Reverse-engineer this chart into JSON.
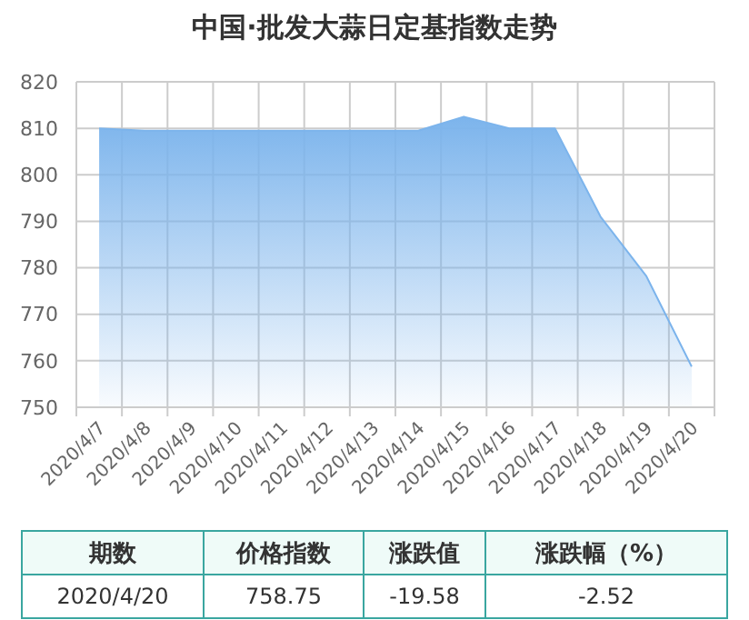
{
  "chart_data": {
    "type": "area",
    "title": "中国·批发大蒜日定基指数走势",
    "categories": [
      "2020/4/7",
      "2020/4/8",
      "2020/4/9",
      "2020/4/10",
      "2020/4/11",
      "2020/4/12",
      "2020/4/13",
      "2020/4/14",
      "2020/4/15",
      "2020/4/16",
      "2020/4/17",
      "2020/4/18",
      "2020/4/19",
      "2020/4/20"
    ],
    "series": [
      {
        "color": "#7cb4ec",
        "values": [
          810,
          809.5,
          809.5,
          809.5,
          809.5,
          809.5,
          809.5,
          809.5,
          812.5,
          810,
          810,
          791,
          778.3,
          758.75
        ]
      }
    ],
    "ylim": [
      750,
      820
    ],
    "yticks": [
      750,
      760,
      770,
      780,
      790,
      800,
      810,
      820
    ],
    "grid": true,
    "annotations": [
      "期数",
      "价格指数",
      "涨跌值",
      "涨跌幅（%）",
      "2020/4/20",
      "758.75",
      "-19.58",
      "-2.52"
    ]
  }
}
